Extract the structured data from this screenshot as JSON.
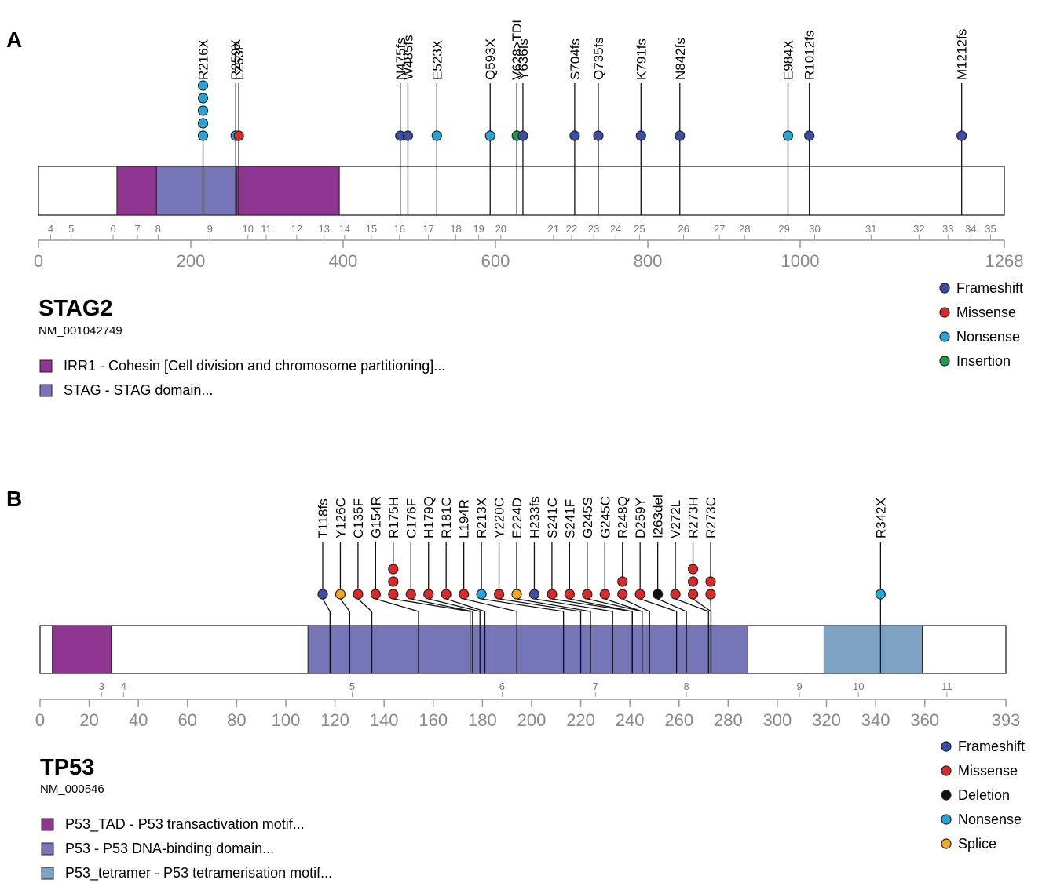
{
  "colors": {
    "Frameshift": "#3a4ea6",
    "Missense": "#dc2828",
    "Nonsense": "#24a6d8",
    "Insertion": "#1e9b4a",
    "Deletion": "#111111",
    "Splice": "#f4a623",
    "IRR1": "#8e3591",
    "STAG": "#7575b7",
    "P53_TAD": "#8e3591",
    "P53": "#7575b7",
    "P53_tetramer": "#7ea2c4"
  },
  "chart_data": [
    {
      "type": "lollipop",
      "panel": "A",
      "gene": "STAG2",
      "accession": "NM_001042749",
      "length": 1268,
      "xlim": [
        0,
        1268
      ],
      "ticks": [
        0,
        200,
        400,
        600,
        800,
        1000,
        1268
      ],
      "tick_labels": [
        "0",
        "200",
        "400",
        "600",
        "800",
        "1000",
        "1268"
      ],
      "domains": [
        {
          "key": "IRR1",
          "label": "IRR1 - Cohesin [Cell division and chromosome partitioning]...",
          "start": 103,
          "end": 155
        },
        {
          "key": "STAG",
          "label": "STAG - STAG domain...",
          "start": 155,
          "end": 260
        },
        {
          "key": "IRR1",
          "label": "IRR1 - Cohesin [Cell division and chromosome partitioning]...",
          "start": 260,
          "end": 395
        }
      ],
      "legend_domains": [
        {
          "key": "IRR1",
          "label": "IRR1 - Cohesin [Cell division and chromosome partitioning]..."
        },
        {
          "key": "STAG",
          "label": "STAG - STAG domain..."
        }
      ],
      "exons": [
        {
          "label": "4",
          "pos": 16
        },
        {
          "label": "5",
          "pos": 43
        },
        {
          "label": "6",
          "pos": 98
        },
        {
          "label": "7",
          "pos": 130
        },
        {
          "label": "8",
          "pos": 157
        },
        {
          "label": "9",
          "pos": 225
        },
        {
          "label": "10",
          "pos": 275
        },
        {
          "label": "11",
          "pos": 299
        },
        {
          "label": "12",
          "pos": 339
        },
        {
          "label": "13",
          "pos": 375
        },
        {
          "label": "14",
          "pos": 402
        },
        {
          "label": "15",
          "pos": 437
        },
        {
          "label": "16",
          "pos": 474
        },
        {
          "label": "17",
          "pos": 512
        },
        {
          "label": "18",
          "pos": 548
        },
        {
          "label": "19",
          "pos": 578
        },
        {
          "label": "20",
          "pos": 607
        },
        {
          "label": "21",
          "pos": 676
        },
        {
          "label": "22",
          "pos": 700
        },
        {
          "label": "23",
          "pos": 729
        },
        {
          "label": "24",
          "pos": 758
        },
        {
          "label": "25",
          "pos": 789
        },
        {
          "label": "26",
          "pos": 847
        },
        {
          "label": "27",
          "pos": 894
        },
        {
          "label": "28",
          "pos": 927
        },
        {
          "label": "29",
          "pos": 979
        },
        {
          "label": "30",
          "pos": 1019
        },
        {
          "label": "31",
          "pos": 1093
        },
        {
          "label": "32",
          "pos": 1156
        },
        {
          "label": "33",
          "pos": 1194
        },
        {
          "label": "34",
          "pos": 1224
        },
        {
          "label": "35",
          "pos": 1250
        }
      ],
      "mutations": [
        {
          "label": "R216X",
          "pos": 216,
          "type": "Nonsense",
          "count": 5
        },
        {
          "label": "R259X",
          "pos": 259,
          "type": "Nonsense",
          "count": 1
        },
        {
          "label": "L263P",
          "pos": 263,
          "type": "Missense",
          "count": 1
        },
        {
          "label": "N475fs",
          "pos": 475,
          "type": "Frameshift",
          "count": 1
        },
        {
          "label": "W485fs",
          "pos": 485,
          "type": "Frameshift",
          "count": 1
        },
        {
          "label": "E523X",
          "pos": 523,
          "type": "Nonsense",
          "count": 1
        },
        {
          "label": "Q593X",
          "pos": 593,
          "type": "Nonsense",
          "count": 1
        },
        {
          "label": "V628>TDI",
          "pos": 628,
          "type": "Insertion",
          "count": 1
        },
        {
          "label": "Y636fs",
          "pos": 636,
          "type": "Frameshift",
          "count": 1
        },
        {
          "label": "S704fs",
          "pos": 704,
          "type": "Frameshift",
          "count": 1
        },
        {
          "label": "Q735fs",
          "pos": 735,
          "type": "Frameshift",
          "count": 1
        },
        {
          "label": "K791fs",
          "pos": 791,
          "type": "Frameshift",
          "count": 1
        },
        {
          "label": "N842fs",
          "pos": 842,
          "type": "Frameshift",
          "count": 1
        },
        {
          "label": "E984X",
          "pos": 984,
          "type": "Nonsense",
          "count": 1
        },
        {
          "label": "R1012fs",
          "pos": 1012,
          "type": "Frameshift",
          "count": 1
        },
        {
          "label": "M1212fs",
          "pos": 1212,
          "type": "Frameshift",
          "count": 1
        }
      ],
      "legend": [
        "Frameshift",
        "Missense",
        "Nonsense",
        "Insertion"
      ]
    },
    {
      "type": "lollipop",
      "panel": "B",
      "gene": "TP53",
      "accession": "NM_000546",
      "length": 393,
      "xlim": [
        0,
        393
      ],
      "ticks": [
        0,
        20,
        40,
        60,
        80,
        100,
        120,
        140,
        160,
        180,
        200,
        220,
        240,
        260,
        280,
        300,
        320,
        340,
        360,
        393
      ],
      "tick_labels": [
        "0",
        "20",
        "40",
        "60",
        "80",
        "100",
        "120",
        "140",
        "160",
        "180",
        "200",
        "220",
        "240",
        "260",
        "280",
        "300",
        "320",
        "340",
        "360",
        "393"
      ],
      "domains": [
        {
          "key": "P53_TAD",
          "label": "P53_TAD - P53 transactivation motif...",
          "start": 5,
          "end": 29
        },
        {
          "key": "P53",
          "label": "P53 - P53 DNA-binding domain...",
          "start": 109,
          "end": 288
        },
        {
          "key": "P53_tetramer",
          "label": "P53_tetramer - P53 tetramerisation motif...",
          "start": 319,
          "end": 359
        }
      ],
      "legend_domains": [
        {
          "key": "P53_TAD",
          "label": "P53_TAD - P53 transactivation motif..."
        },
        {
          "key": "P53",
          "label": "P53 - P53 DNA-binding domain..."
        },
        {
          "key": "P53_tetramer",
          "label": "P53_tetramer - P53 tetramerisation motif..."
        }
      ],
      "exons": [
        {
          "label": "3",
          "pos": 25
        },
        {
          "label": "4",
          "pos": 34
        },
        {
          "label": "5",
          "pos": 127
        },
        {
          "label": "6",
          "pos": 188
        },
        {
          "label": "7",
          "pos": 226
        },
        {
          "label": "8",
          "pos": 263
        },
        {
          "label": "9",
          "pos": 309
        },
        {
          "label": "10",
          "pos": 333
        },
        {
          "label": "11",
          "pos": 369
        }
      ],
      "mutations": [
        {
          "label": "T118fs",
          "pos": 118,
          "type": "Frameshift",
          "count": 1
        },
        {
          "label": "Y126C",
          "pos": 126,
          "type": "Splice",
          "count": 1
        },
        {
          "label": "C135F",
          "pos": 135,
          "type": "Missense",
          "count": 1
        },
        {
          "label": "G154R",
          "pos": 154,
          "type": "Missense",
          "count": 1
        },
        {
          "label": "R175H",
          "pos": 175,
          "type": "Missense",
          "count": 3
        },
        {
          "label": "C176F",
          "pos": 176,
          "type": "Missense",
          "count": 1
        },
        {
          "label": "H179Q",
          "pos": 179,
          "type": "Missense",
          "count": 1
        },
        {
          "label": "R181C",
          "pos": 181,
          "type": "Missense",
          "count": 1
        },
        {
          "label": "L194R",
          "pos": 194,
          "type": "Missense",
          "count": 1
        },
        {
          "label": "R213X",
          "pos": 213,
          "type": "Nonsense",
          "count": 1
        },
        {
          "label": "Y220C",
          "pos": 220,
          "type": "Missense",
          "count": 1
        },
        {
          "label": "E224D",
          "pos": 224,
          "type": "Splice",
          "count": 1
        },
        {
          "label": "H233fs",
          "pos": 233,
          "type": "Frameshift",
          "count": 1
        },
        {
          "label": "S241C",
          "pos": 241,
          "type": "Missense",
          "count": 1
        },
        {
          "label": "S241F",
          "pos": 241,
          "type": "Missense",
          "count": 1
        },
        {
          "label": "G245S",
          "pos": 245,
          "type": "Missense",
          "count": 1
        },
        {
          "label": "G245C",
          "pos": 245,
          "type": "Missense",
          "count": 1
        },
        {
          "label": "R248Q",
          "pos": 248,
          "type": "Missense",
          "count": 2
        },
        {
          "label": "D259Y",
          "pos": 259,
          "type": "Missense",
          "count": 1
        },
        {
          "label": "I263del",
          "pos": 263,
          "type": "Deletion",
          "count": 1
        },
        {
          "label": "V272L",
          "pos": 272,
          "type": "Missense",
          "count": 1
        },
        {
          "label": "R273H",
          "pos": 273,
          "type": "Missense",
          "count": 3
        },
        {
          "label": "R273C",
          "pos": 273,
          "type": "Missense",
          "count": 2
        },
        {
          "label": "R342X",
          "pos": 342,
          "type": "Nonsense",
          "count": 1
        }
      ],
      "legend": [
        "Frameshift",
        "Missense",
        "Deletion",
        "Nonsense",
        "Splice"
      ]
    }
  ]
}
